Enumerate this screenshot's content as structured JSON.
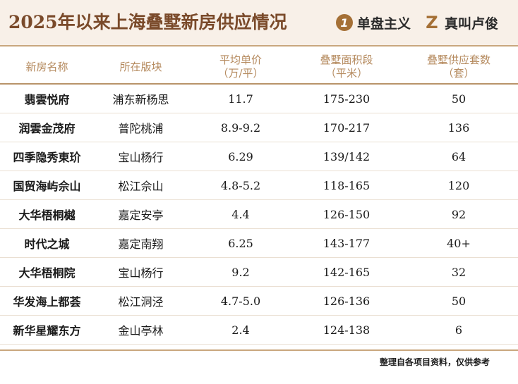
{
  "title": "2025年以来上海叠墅新房供应情况",
  "logos": {
    "logo1_mark": "1",
    "logo1_text": "单盘主义",
    "logo2_mark": "Z",
    "logo2_text": "真叫卢俊"
  },
  "table": {
    "headers": [
      {
        "line1": "新房名称",
        "line2": ""
      },
      {
        "line1": "所在版块",
        "line2": ""
      },
      {
        "line1": "平均单价",
        "line2": "（万/平）"
      },
      {
        "line1": "叠墅面积段",
        "line2": "（平米）"
      },
      {
        "line1": "叠墅供应套数",
        "line2": "（套）"
      }
    ],
    "rows": [
      [
        "翡雲悦府",
        "浦东新杨思",
        "11.7",
        "175-230",
        "50"
      ],
      [
        "润雲金茂府",
        "普陀桃浦",
        "8.9-9.2",
        "170-217",
        "136"
      ],
      [
        "四季隐秀東玠",
        "宝山杨行",
        "6.29",
        "139/142",
        "64"
      ],
      [
        "国贸海屿佘山",
        "松江佘山",
        "4.8-5.2",
        "118-165",
        "120"
      ],
      [
        "大华梧桐樾",
        "嘉定安亭",
        "4.4",
        "126-150",
        "92"
      ],
      [
        "时代之城",
        "嘉定南翔",
        "6.25",
        "143-177",
        "40+"
      ],
      [
        "大华梧桐院",
        "宝山杨行",
        "9.2",
        "142-165",
        "32"
      ],
      [
        "华发海上都荟",
        "松江洞泾",
        "4.7-5.0",
        "126-136",
        "50"
      ],
      [
        "新华星耀东方",
        "金山亭林",
        "2.4",
        "124-138",
        "6"
      ]
    ]
  },
  "footnote": "整理自各项目资料，仅供参考",
  "colors": {
    "title": "#7a4a2a",
    "header_text": "#b58a5e",
    "accent": "#a57036",
    "rule": "#c9a77e"
  }
}
